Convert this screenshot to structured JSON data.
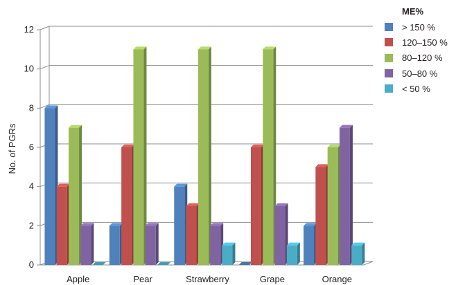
{
  "chart_data": {
    "type": "bar",
    "categories": [
      "Apple",
      "Pear",
      "Strawberry",
      "Grape",
      "Orange"
    ],
    "ylabel": "No. of PGRs",
    "ylim": [
      0,
      12
    ],
    "yticks": [
      0,
      2,
      4,
      6,
      8,
      10,
      12
    ],
    "grid": true,
    "legend_title": "ME%",
    "legend_position": "top-right",
    "series": [
      {
        "name": "> 150 %",
        "color": "#4f81bd",
        "values": [
          8,
          2,
          4,
          0,
          2
        ]
      },
      {
        "name": "120–150 %",
        "color": "#c0504d",
        "values": [
          4,
          6,
          3,
          6,
          5
        ]
      },
      {
        "name": "80–120 %",
        "color": "#9bbb59",
        "values": [
          7,
          11,
          11,
          11,
          6
        ]
      },
      {
        "name": "50–80 %",
        "color": "#8064a2",
        "values": [
          2,
          2,
          2,
          3,
          7
        ]
      },
      {
        "name": "< 50 %",
        "color": "#4bacc6",
        "values": [
          0,
          0,
          1,
          1,
          1
        ]
      }
    ]
  }
}
